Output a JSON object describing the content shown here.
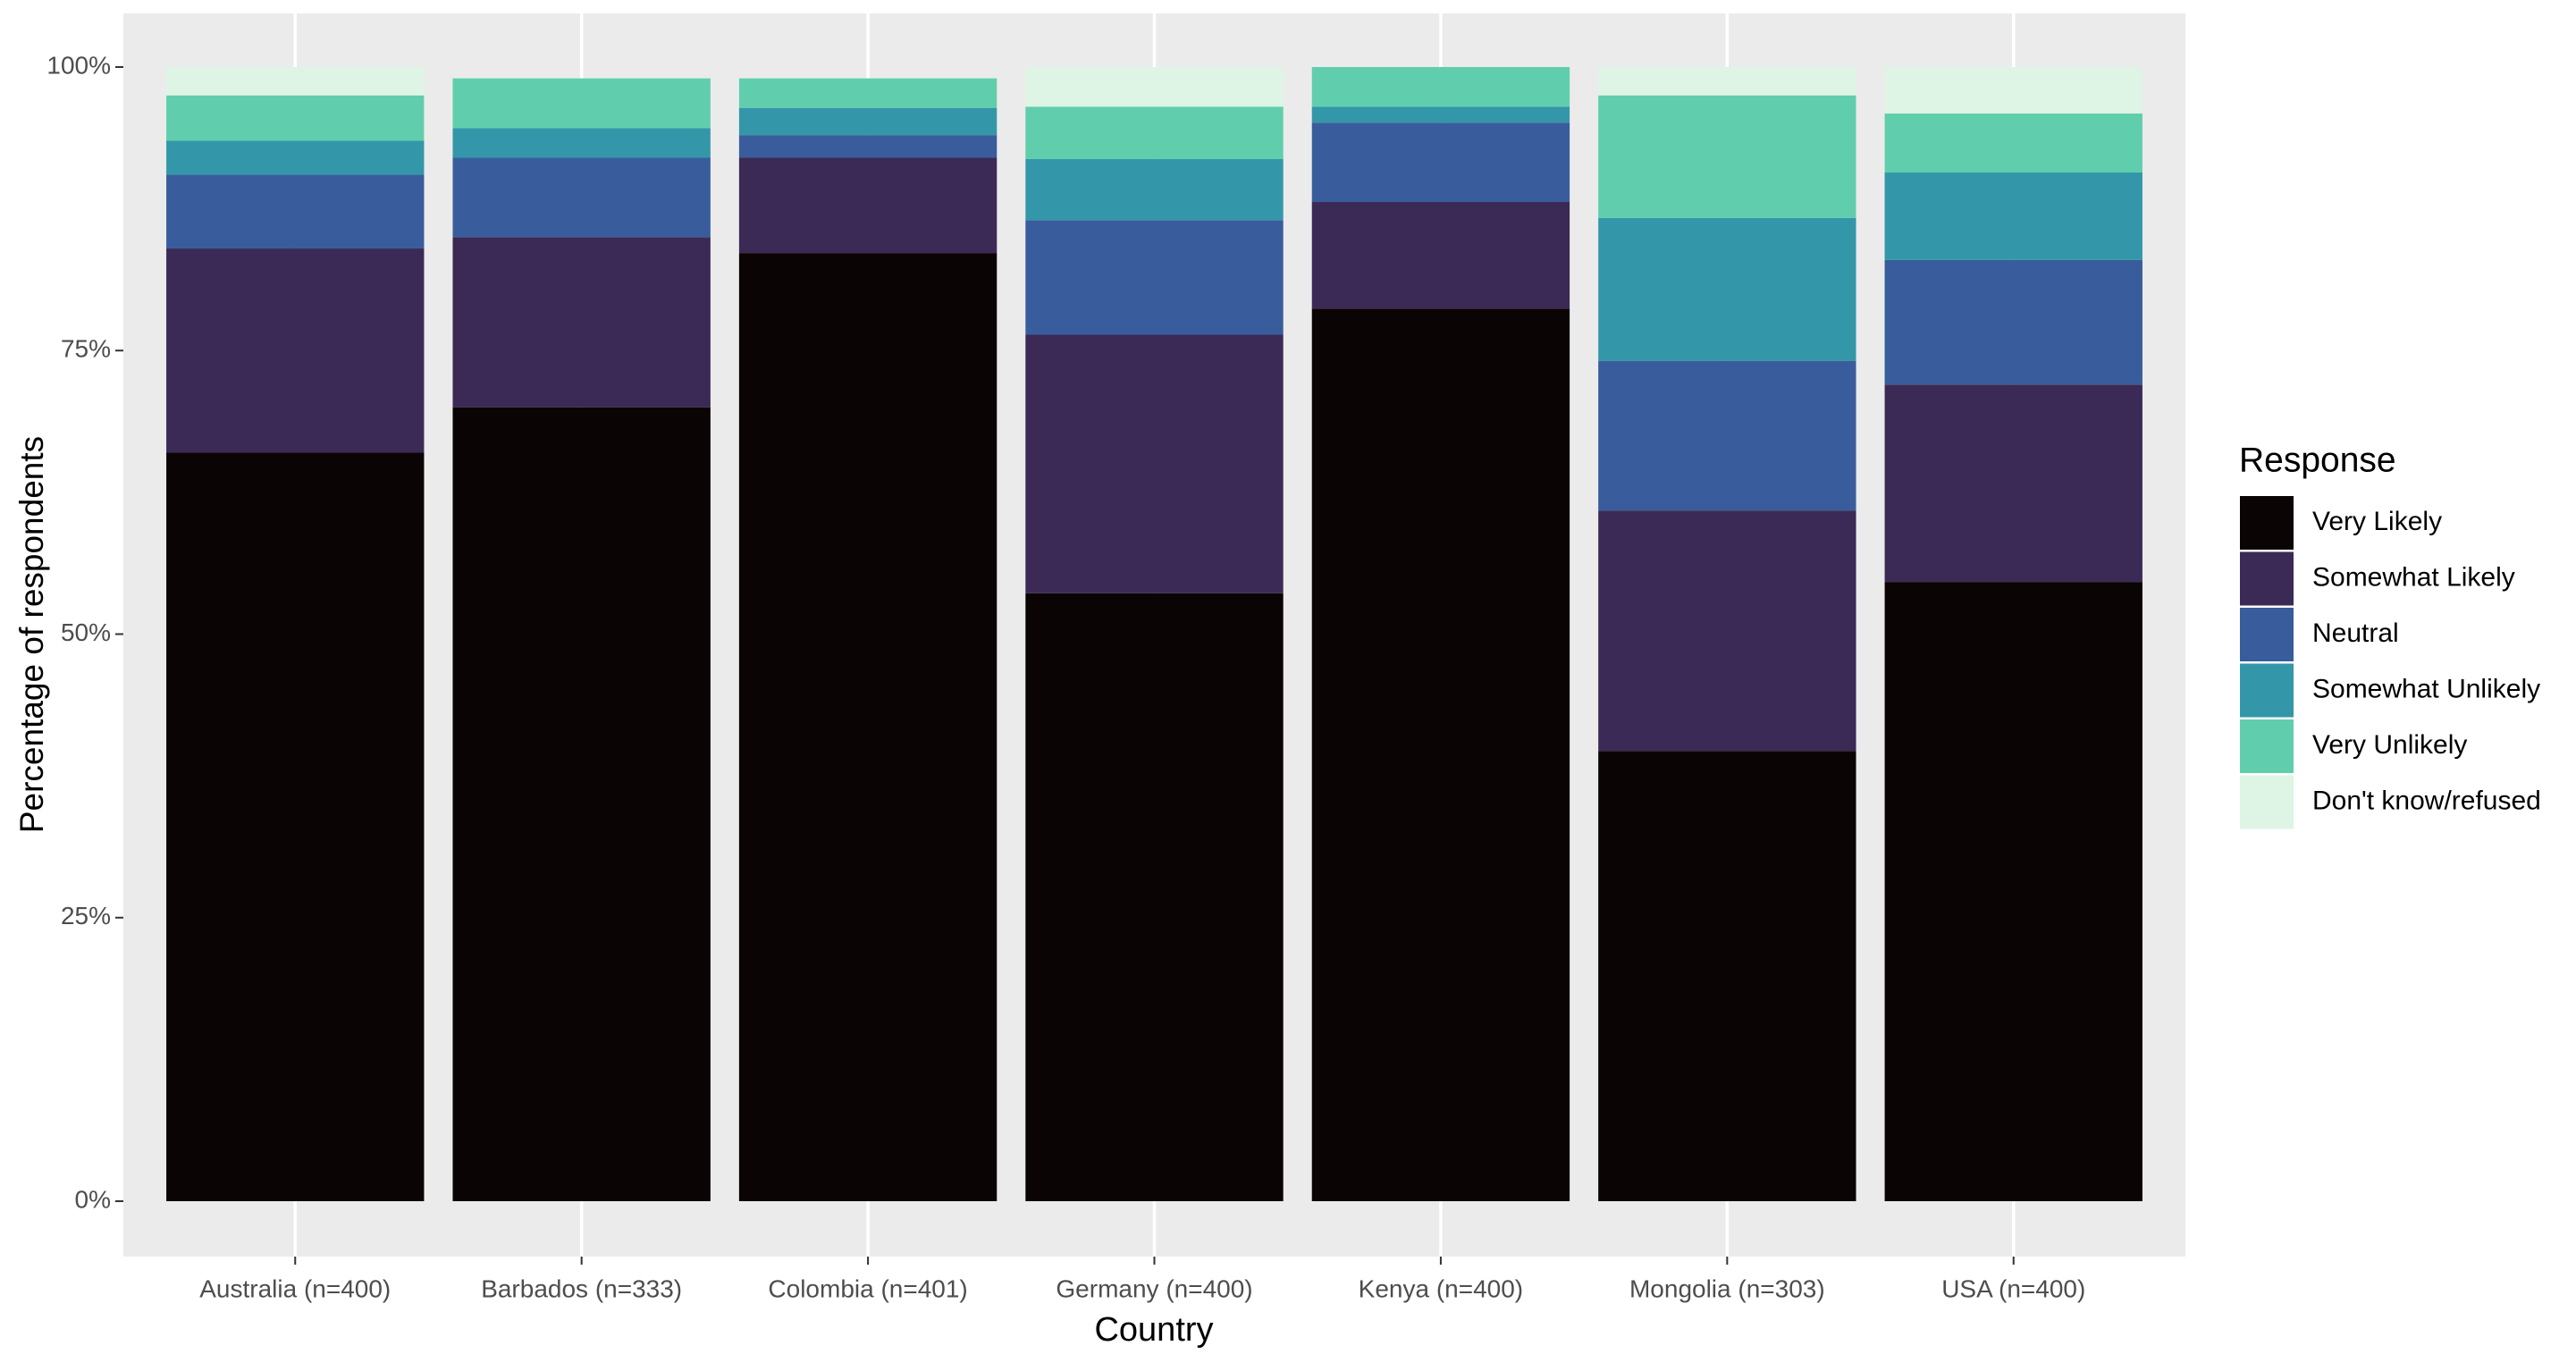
{
  "chart_data": {
    "type": "stacked_bar",
    "x_label": "Country",
    "y_label": "Percentage of respondents",
    "legend_title": "Response",
    "legend_position": "right",
    "grid": true,
    "categories": [
      "Australia (n=400)",
      "Barbados (n=333)",
      "Colombia (n=401)",
      "Germany (n=400)",
      "Kenya (n=400)",
      "Mongolia (n=303)",
      "USA (n=400)"
    ],
    "ylim": [
      0,
      100
    ],
    "yticks": [
      {
        "value": 0,
        "label": "0%"
      },
      {
        "value": 25,
        "label": "25%"
      },
      {
        "value": 50,
        "label": "50%"
      },
      {
        "value": 75,
        "label": "75%"
      },
      {
        "value": 100,
        "label": "100%"
      }
    ],
    "series": [
      {
        "name": "Very Likely",
        "color": "#0b0405",
        "values": [
          66,
          70,
          83.6,
          53.6,
          78.7,
          39.7,
          54.6
        ]
      },
      {
        "name": "Somewhat Likely",
        "color": "#3b2a55",
        "values": [
          18,
          15,
          8.4,
          22.8,
          9.4,
          21.2,
          17.4
        ]
      },
      {
        "name": "Neutral",
        "color": "#395d9c",
        "values": [
          6.5,
          7,
          2,
          10.1,
          7,
          13.2,
          11
        ]
      },
      {
        "name": "Somewhat Unlikely",
        "color": "#3497a9",
        "values": [
          3,
          2.6,
          2.4,
          5.4,
          1.4,
          12.6,
          7.7
        ]
      },
      {
        "name": "Very Unlikely",
        "color": "#60ceac",
        "values": [
          4,
          4.4,
          2.6,
          4.6,
          3.5,
          10.8,
          5.2
        ]
      },
      {
        "name": "Don't know/refused",
        "color": "#def5e5",
        "values": [
          2.5,
          0,
          0,
          3.5,
          0,
          2.5,
          4.1
        ]
      }
    ]
  }
}
